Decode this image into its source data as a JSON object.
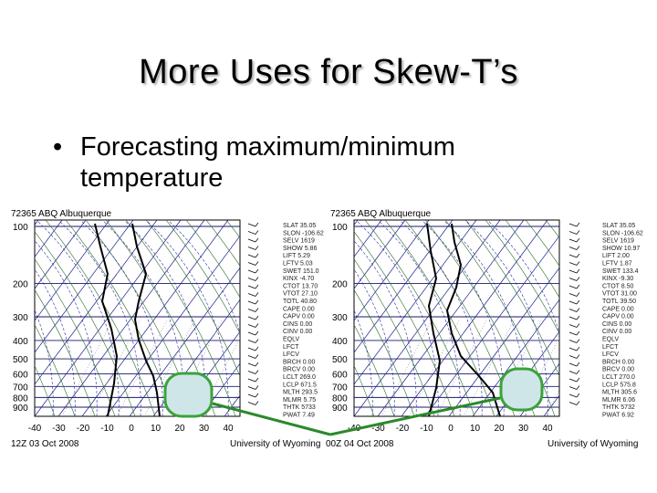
{
  "slide": {
    "title": "More Uses for Skew-T’s",
    "bullet_marker": "•",
    "bullet_text": "Forecasting maximum/minimum temperature"
  },
  "diagrams": [
    {
      "station": "72365 ABQ Albuquerque",
      "time": "12Z 03 Oct 2008",
      "credit": "University of Wyoming",
      "pressure_labels": [
        "100",
        "200",
        "300",
        "400",
        "500",
        "600",
        "700",
        "800",
        "900"
      ],
      "temp_labels": [
        "-40",
        "-30",
        "-20",
        "-10",
        "0",
        "10",
        "20",
        "30",
        "40"
      ],
      "indices": [
        "SLAT 35.05",
        "SLON -106.62",
        "SELV 1619",
        "SHOW 5.86",
        "LIFT 5.29",
        "LFTV 5.03",
        "SWET 151.0",
        "KINX -4.70",
        "CTOT 13.70",
        "VTOT 27.10",
        "TOTL 40.80",
        "CAPE 0.00",
        "CAPV 0.00",
        "CINS 0.00",
        "CINV 0.00",
        "EQLV",
        "LFCT",
        "LFCV",
        "BRCH 0.00",
        "BRCV 0.00",
        "LCLT 269.0",
        "LCLP 671.5",
        "MLTH 293.5",
        "MLMR 5.75",
        "THTK 5733",
        "PWAT 7.49"
      ]
    },
    {
      "station": "72365 ABQ Albuquerque",
      "time": "00Z 04 Oct 2008",
      "credit": "University of Wyoming",
      "pressure_labels": [
        "100",
        "200",
        "300",
        "400",
        "500",
        "600",
        "700",
        "800",
        "900"
      ],
      "temp_labels": [
        "-40",
        "-30",
        "-20",
        "-10",
        "0",
        "10",
        "20",
        "30",
        "40"
      ],
      "indices": [
        "SLAT 35.05",
        "SLON -106.62",
        "SELV 1619",
        "SHOW 10.97",
        "LIFT 2.00",
        "LFTV 1.87",
        "SWET 133.4",
        "KINX -9.30",
        "CTOT 8.50",
        "VTOT 31.00",
        "TOTL 39.50",
        "CAPE 0.00",
        "CAPV 0.00",
        "CINS 0.00",
        "CINV 0.00",
        "EQLV",
        "LFCT",
        "LFCV",
        "BRCH 0.00",
        "BRCV 0.00",
        "LCLT 270.0",
        "LCLP 575.8",
        "MLTH 305.6",
        "MLMR 6.06",
        "THTK 5732",
        "PWAT 6.92"
      ]
    }
  ],
  "colors": {
    "highlight_fill": "#cfe6e8",
    "highlight_stroke": "#3aa33a",
    "connector": "#2a8a2a",
    "isotherm": "#1a1a8a",
    "dry_adiabat": "#2a6a2a",
    "moist_adiabat": "#2a2aa0",
    "isobar": "#1a1a6a"
  }
}
